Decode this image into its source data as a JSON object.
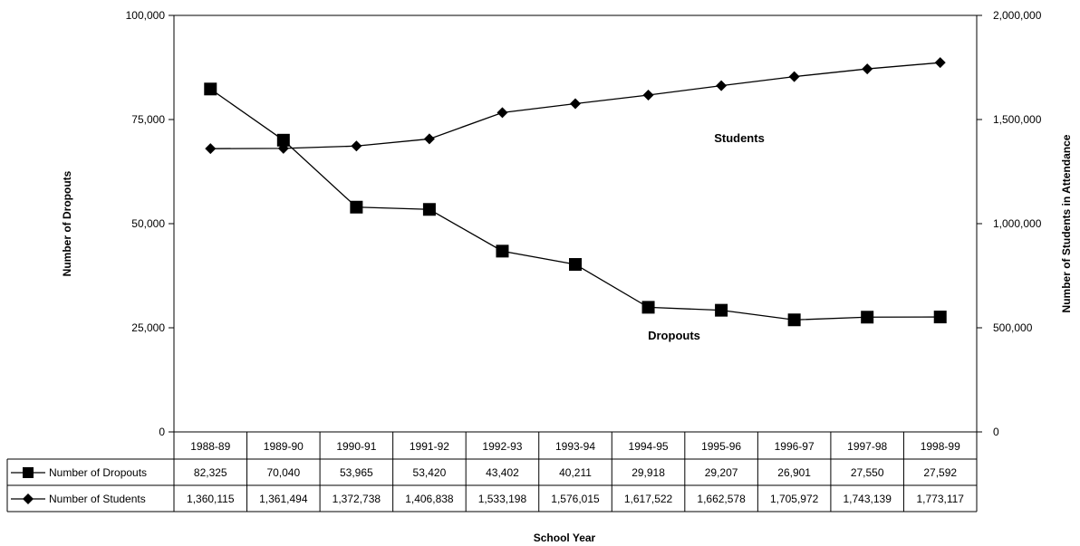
{
  "chart_data": {
    "type": "line",
    "categories": [
      "1988-89",
      "1989-90",
      "1990-91",
      "1991-92",
      "1992-93",
      "1993-94",
      "1994-95",
      "1995-96",
      "1996-97",
      "1997-98",
      "1998-99"
    ],
    "series": [
      {
        "name": "Number of Dropouts",
        "axis": "left",
        "marker": "square",
        "values": [
          82325,
          70040,
          53965,
          53420,
          43402,
          40211,
          29918,
          29207,
          26901,
          27550,
          27592
        ],
        "labels": [
          "82,325",
          "70,040",
          "53,965",
          "53,420",
          "43,402",
          "40,211",
          "29,918",
          "29,207",
          "26,901",
          "27,550",
          "27,592"
        ]
      },
      {
        "name": "Number of Students",
        "axis": "right",
        "marker": "diamond",
        "values": [
          1360115,
          1361494,
          1372738,
          1406838,
          1533198,
          1576015,
          1617522,
          1662578,
          1705972,
          1743139,
          1773117
        ],
        "labels": [
          "1,360,115",
          "1,361,494",
          "1,372,738",
          "1,406,838",
          "1,533,198",
          "1,576,015",
          "1,617,522",
          "1,662,578",
          "1,705,972",
          "1,743,139",
          "1,773,117"
        ]
      }
    ],
    "ylabel": "Number of Dropouts",
    "y2label": "Number of Students in Attendance",
    "xlabel": "School Year",
    "ylim": [
      0,
      100000
    ],
    "y2lim": [
      0,
      2000000
    ],
    "yticks": [
      "0",
      "25,000",
      "50,000",
      "75,000",
      "100,000"
    ],
    "y2ticks": [
      "0",
      "500,000",
      "1,000,000",
      "1,500,000",
      "2,000,000"
    ],
    "annotations": [
      {
        "text": "Students"
      },
      {
        "text": "Dropouts"
      }
    ],
    "grid": false,
    "legend": "data-table"
  }
}
